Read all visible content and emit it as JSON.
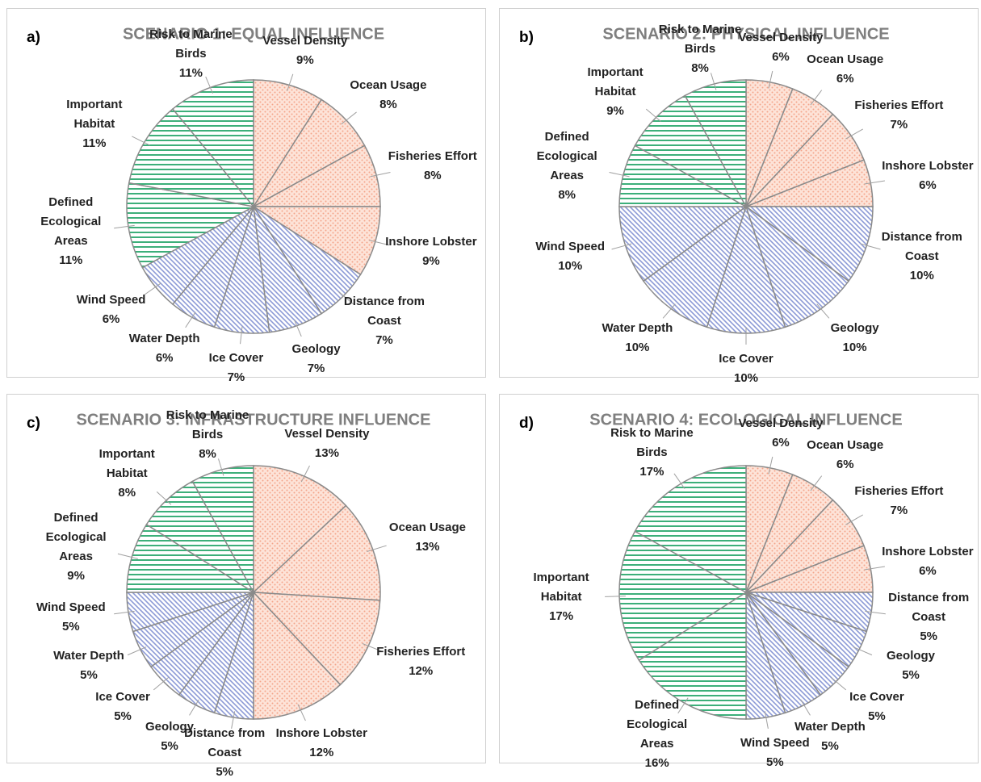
{
  "chart_data": [
    {
      "type": "pie",
      "label": "a)",
      "title": "SCENARIO 1: EQUAL INFLUENCE",
      "categories": [
        "Vessel Density",
        "Ocean Usage",
        "Fisheries Effort",
        "Inshore Lobster",
        "Distance from Coast",
        "Geology",
        "Ice Cover",
        "Water Depth",
        "Wind Speed",
        "Defined Ecological Areas",
        "Important Habitat",
        "Risk to Marine Birds"
      ],
      "values": [
        9,
        8,
        8,
        9,
        7,
        7,
        7,
        6,
        6,
        11,
        11,
        11
      ],
      "value_labels": [
        "9%",
        "8%",
        "8%",
        "9%",
        "7%",
        "7%",
        "7%",
        "6%",
        "6%",
        "11%",
        "11%",
        "11%"
      ],
      "colors": [
        "#f4a58a",
        "#f4a58a",
        "#f4a58a",
        "#f4a58a",
        "#8c9ad6",
        "#8c9ad6",
        "#8c9ad6",
        "#8c9ad6",
        "#8c9ad6",
        "#3daf7a",
        "#3daf7a",
        "#3daf7a"
      ]
    },
    {
      "type": "pie",
      "label": "b)",
      "title": "SCENARIO 2: PHYSICAL INFLUENCE",
      "categories": [
        "Vessel Density",
        "Ocean Usage",
        "Fisheries Effort",
        "Inshore Lobster",
        "Distance from Coast",
        "Geology",
        "Ice Cover",
        "Water Depth",
        "Wind Speed",
        "Defined Ecological Areas",
        "Important Habitat",
        "Risk to Marine Birds"
      ],
      "values": [
        6,
        6,
        7,
        6,
        10,
        10,
        10,
        10,
        10,
        8,
        9,
        8
      ],
      "value_labels": [
        "6%",
        "6%",
        "7%",
        "6%",
        "10%",
        "10%",
        "10%",
        "10%",
        "10%",
        "8%",
        "9%",
        "8%"
      ],
      "colors": [
        "#f4a58a",
        "#f4a58a",
        "#f4a58a",
        "#f4a58a",
        "#8c9ad6",
        "#8c9ad6",
        "#8c9ad6",
        "#8c9ad6",
        "#8c9ad6",
        "#3daf7a",
        "#3daf7a",
        "#3daf7a"
      ]
    },
    {
      "type": "pie",
      "label": "c)",
      "title": "SCENARIO 3: INFRASTRUCTURE INFLUENCE",
      "categories": [
        "Vessel Density",
        "Ocean Usage",
        "Fisheries Effort",
        "Inshore Lobster",
        "Distance from Coast",
        "Geology",
        "Ice Cover",
        "Water Depth",
        "Wind Speed",
        "Defined Ecological Areas",
        "Important Habitat",
        "Risk to Marine Birds"
      ],
      "values": [
        13,
        13,
        12,
        12,
        5,
        5,
        5,
        5,
        5,
        9,
        8,
        8
      ],
      "value_labels": [
        "13%",
        "13%",
        "12%",
        "12%",
        "5%",
        "5%",
        "5%",
        "5%",
        "5%",
        "9%",
        "8%",
        "8%"
      ],
      "colors": [
        "#f4a58a",
        "#f4a58a",
        "#f4a58a",
        "#f4a58a",
        "#8c9ad6",
        "#8c9ad6",
        "#8c9ad6",
        "#8c9ad6",
        "#8c9ad6",
        "#3daf7a",
        "#3daf7a",
        "#3daf7a"
      ]
    },
    {
      "type": "pie",
      "label": "d)",
      "title": "SCENARIO 4: ECOLOGICAL INFLUENCE",
      "categories": [
        "Vessel Density",
        "Ocean Usage",
        "Fisheries Effort",
        "Inshore Lobster",
        "Distance from Coast",
        "Geology",
        "Ice Cover",
        "Water Depth",
        "Wind Speed",
        "Defined Ecological Areas",
        "Important Habitat",
        "Risk to Marine Birds"
      ],
      "values": [
        6,
        6,
        7,
        6,
        5,
        5,
        5,
        5,
        5,
        16,
        17,
        17
      ],
      "value_labels": [
        "6%",
        "6%",
        "7%",
        "6%",
        "5%",
        "5%",
        "5%",
        "5%",
        "5%",
        "16%",
        "17%",
        "17%"
      ],
      "colors": [
        "#f4a58a",
        "#f4a58a",
        "#f4a58a",
        "#f4a58a",
        "#8c9ad6",
        "#8c9ad6",
        "#8c9ad6",
        "#8c9ad6",
        "#8c9ad6",
        "#3daf7a",
        "#3daf7a",
        "#3daf7a"
      ]
    }
  ]
}
